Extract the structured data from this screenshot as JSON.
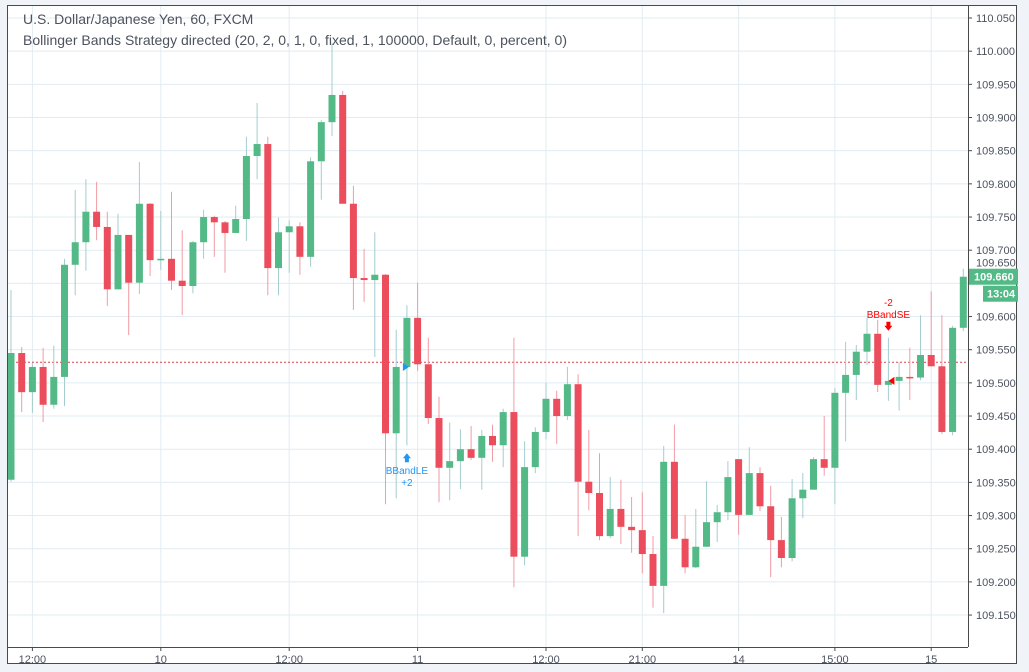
{
  "legend": {
    "symbol_line": "U.S. Dollar/Japanese Yen, 60, FXCM",
    "strategy_line": "Bollinger Bands Strategy directed (20, 2, 0, 1, 0, fixed, 1, 100000, Default, 0, percent, 0)"
  },
  "colors": {
    "up": "#53b987",
    "down": "#eb4d5c",
    "up_wick": "#a3cdcf",
    "down_wick": "#f19ba4",
    "grid": "#e1ecf2",
    "long_signal": "#2196f3",
    "short_signal": "#ff0000",
    "position_line": "#e0404f"
  },
  "last_price": {
    "value": "109.660",
    "countdown": "13:04"
  },
  "chart_data": {
    "type": "candlestick",
    "title": "U.S. Dollar/Japanese Yen, 60, FXCM",
    "ylim": [
      109.13,
      110.07
    ],
    "grid": true,
    "price_ticks": [
      "110.050",
      "110.000",
      "109.950",
      "109.900",
      "109.850",
      "109.800",
      "109.750",
      "109.700",
      "109.650",
      "109.600",
      "109.550",
      "109.500",
      "109.450",
      "109.400",
      "109.350",
      "109.300",
      "109.250",
      "109.200",
      "109.150"
    ],
    "time_ticks": [
      {
        "label": "12:00",
        "candle": 3
      },
      {
        "label": "10",
        "candle": 15
      },
      {
        "label": "12:00",
        "candle": 27
      },
      {
        "label": "11",
        "candle": 39
      },
      {
        "label": "12:00",
        "candle": 51
      },
      {
        "label": "21:00",
        "candle": 60
      },
      {
        "label": "14",
        "candle": 69
      },
      {
        "label": "15:00",
        "candle": 78
      },
      {
        "label": "15",
        "candle": 87
      }
    ],
    "position_line_price": 109.531,
    "ohlc": [
      [
        109.354,
        109.64,
        109.351,
        109.545
      ],
      [
        109.545,
        109.554,
        109.456,
        109.486
      ],
      [
        109.486,
        109.53,
        109.455,
        109.524
      ],
      [
        109.524,
        109.553,
        109.441,
        109.467
      ],
      [
        109.467,
        109.556,
        109.461,
        109.509
      ],
      [
        109.509,
        109.687,
        109.465,
        109.678
      ],
      [
        109.678,
        109.791,
        109.632,
        109.712
      ],
      [
        109.712,
        109.807,
        109.669,
        109.758
      ],
      [
        109.758,
        109.803,
        109.715,
        109.735
      ],
      [
        109.735,
        109.758,
        109.616,
        109.641
      ],
      [
        109.641,
        109.755,
        109.641,
        109.723
      ],
      [
        109.723,
        109.723,
        109.572,
        109.651
      ],
      [
        109.651,
        109.833,
        109.634,
        109.77
      ],
      [
        109.77,
        109.771,
        109.661,
        109.685
      ],
      [
        109.685,
        109.759,
        109.67,
        109.687
      ],
      [
        109.687,
        109.788,
        109.64,
        109.654
      ],
      [
        109.654,
        109.73,
        109.602,
        109.646
      ],
      [
        109.646,
        109.714,
        109.635,
        109.712
      ],
      [
        109.712,
        109.761,
        109.687,
        109.75
      ],
      [
        109.75,
        109.752,
        109.69,
        109.742
      ],
      [
        109.742,
        109.744,
        109.666,
        109.726
      ],
      [
        109.726,
        109.767,
        109.726,
        109.747
      ],
      [
        109.747,
        109.871,
        109.714,
        109.842
      ],
      [
        109.842,
        109.922,
        109.807,
        109.86
      ],
      [
        109.86,
        109.871,
        109.632,
        109.673
      ],
      [
        109.673,
        109.749,
        109.632,
        109.727
      ],
      [
        109.727,
        109.745,
        109.666,
        109.736
      ],
      [
        109.736,
        109.742,
        109.663,
        109.69
      ],
      [
        109.69,
        109.84,
        109.675,
        109.834
      ],
      [
        109.834,
        109.896,
        109.776,
        109.893
      ],
      [
        109.893,
        110.012,
        109.872,
        109.934
      ],
      [
        109.934,
        109.94,
        109.77,
        109.77
      ],
      [
        109.77,
        109.797,
        109.61,
        109.658
      ],
      [
        109.658,
        109.702,
        109.622,
        109.655
      ],
      [
        109.655,
        109.727,
        109.539,
        109.663
      ],
      [
        109.663,
        109.664,
        109.317,
        109.424
      ],
      [
        109.424,
        109.58,
        109.326,
        109.524
      ],
      [
        109.524,
        109.617,
        109.406,
        109.598
      ],
      [
        109.598,
        109.651,
        109.518,
        109.528
      ],
      [
        109.528,
        109.568,
        109.438,
        109.447
      ],
      [
        109.447,
        109.479,
        109.32,
        109.372
      ],
      [
        109.372,
        109.44,
        109.323,
        109.382
      ],
      [
        109.382,
        109.43,
        109.34,
        109.4
      ],
      [
        109.4,
        109.435,
        109.384,
        109.387
      ],
      [
        109.387,
        109.429,
        109.339,
        109.42
      ],
      [
        109.42,
        109.437,
        109.381,
        109.406
      ],
      [
        109.406,
        109.461,
        109.373,
        109.456
      ],
      [
        109.456,
        109.568,
        109.192,
        109.238
      ],
      [
        109.238,
        109.412,
        109.225,
        109.373
      ],
      [
        109.373,
        109.433,
        109.364,
        109.426
      ],
      [
        109.426,
        109.5,
        109.415,
        109.476
      ],
      [
        109.476,
        109.488,
        109.408,
        109.45
      ],
      [
        109.45,
        109.524,
        109.444,
        109.498
      ],
      [
        109.498,
        109.513,
        109.269,
        109.351
      ],
      [
        109.351,
        109.429,
        109.308,
        109.334
      ],
      [
        109.334,
        109.394,
        109.263,
        109.269
      ],
      [
        109.269,
        109.358,
        109.266,
        109.31
      ],
      [
        109.31,
        109.354,
        109.257,
        109.283
      ],
      [
        109.283,
        109.328,
        109.244,
        109.278
      ],
      [
        109.278,
        109.335,
        109.213,
        109.242
      ],
      [
        109.242,
        109.269,
        109.161,
        109.194
      ],
      [
        109.194,
        109.405,
        109.153,
        109.381
      ],
      [
        109.381,
        109.437,
        109.265,
        109.265
      ],
      [
        109.265,
        109.301,
        109.213,
        109.222
      ],
      [
        109.222,
        109.31,
        109.221,
        109.253
      ],
      [
        109.253,
        109.352,
        109.253,
        109.29
      ],
      [
        109.29,
        109.316,
        109.26,
        109.305
      ],
      [
        109.305,
        109.382,
        109.293,
        109.358
      ],
      [
        109.385,
        109.385,
        109.271,
        109.301
      ],
      [
        109.301,
        109.403,
        109.301,
        109.364
      ],
      [
        109.364,
        109.373,
        109.307,
        109.314
      ],
      [
        109.314,
        109.345,
        109.207,
        109.263
      ],
      [
        109.263,
        109.298,
        109.222,
        109.236
      ],
      [
        109.236,
        109.355,
        109.231,
        109.326
      ],
      [
        109.326,
        109.364,
        109.296,
        109.339
      ],
      [
        109.339,
        109.388,
        109.339,
        109.385
      ],
      [
        109.385,
        109.45,
        109.36,
        109.372
      ],
      [
        109.372,
        109.492,
        109.317,
        109.485
      ],
      [
        109.485,
        109.562,
        109.412,
        109.512
      ],
      [
        109.512,
        109.557,
        109.474,
        109.547
      ],
      [
        109.547,
        109.598,
        109.527,
        109.574
      ],
      [
        109.574,
        109.595,
        109.486,
        109.497
      ],
      [
        109.497,
        109.568,
        109.473,
        109.503
      ],
      [
        109.503,
        109.531,
        109.458,
        109.509
      ],
      [
        109.509,
        109.553,
        109.474,
        109.508
      ],
      [
        109.508,
        109.602,
        109.504,
        109.542
      ],
      [
        109.542,
        109.638,
        109.525,
        109.525
      ],
      [
        109.525,
        109.602,
        109.423,
        109.426
      ],
      [
        109.426,
        109.586,
        109.421,
        109.583
      ],
      [
        109.583,
        109.672,
        109.578,
        109.66
      ]
    ],
    "signals": [
      {
        "label": "BBandLE",
        "qty": "+2",
        "candle": 38,
        "side": "long",
        "fill_price": 109.524
      },
      {
        "label": "BBandSE",
        "qty": "-2",
        "candle": 83,
        "side": "short",
        "fill_price": 109.503
      }
    ]
  }
}
